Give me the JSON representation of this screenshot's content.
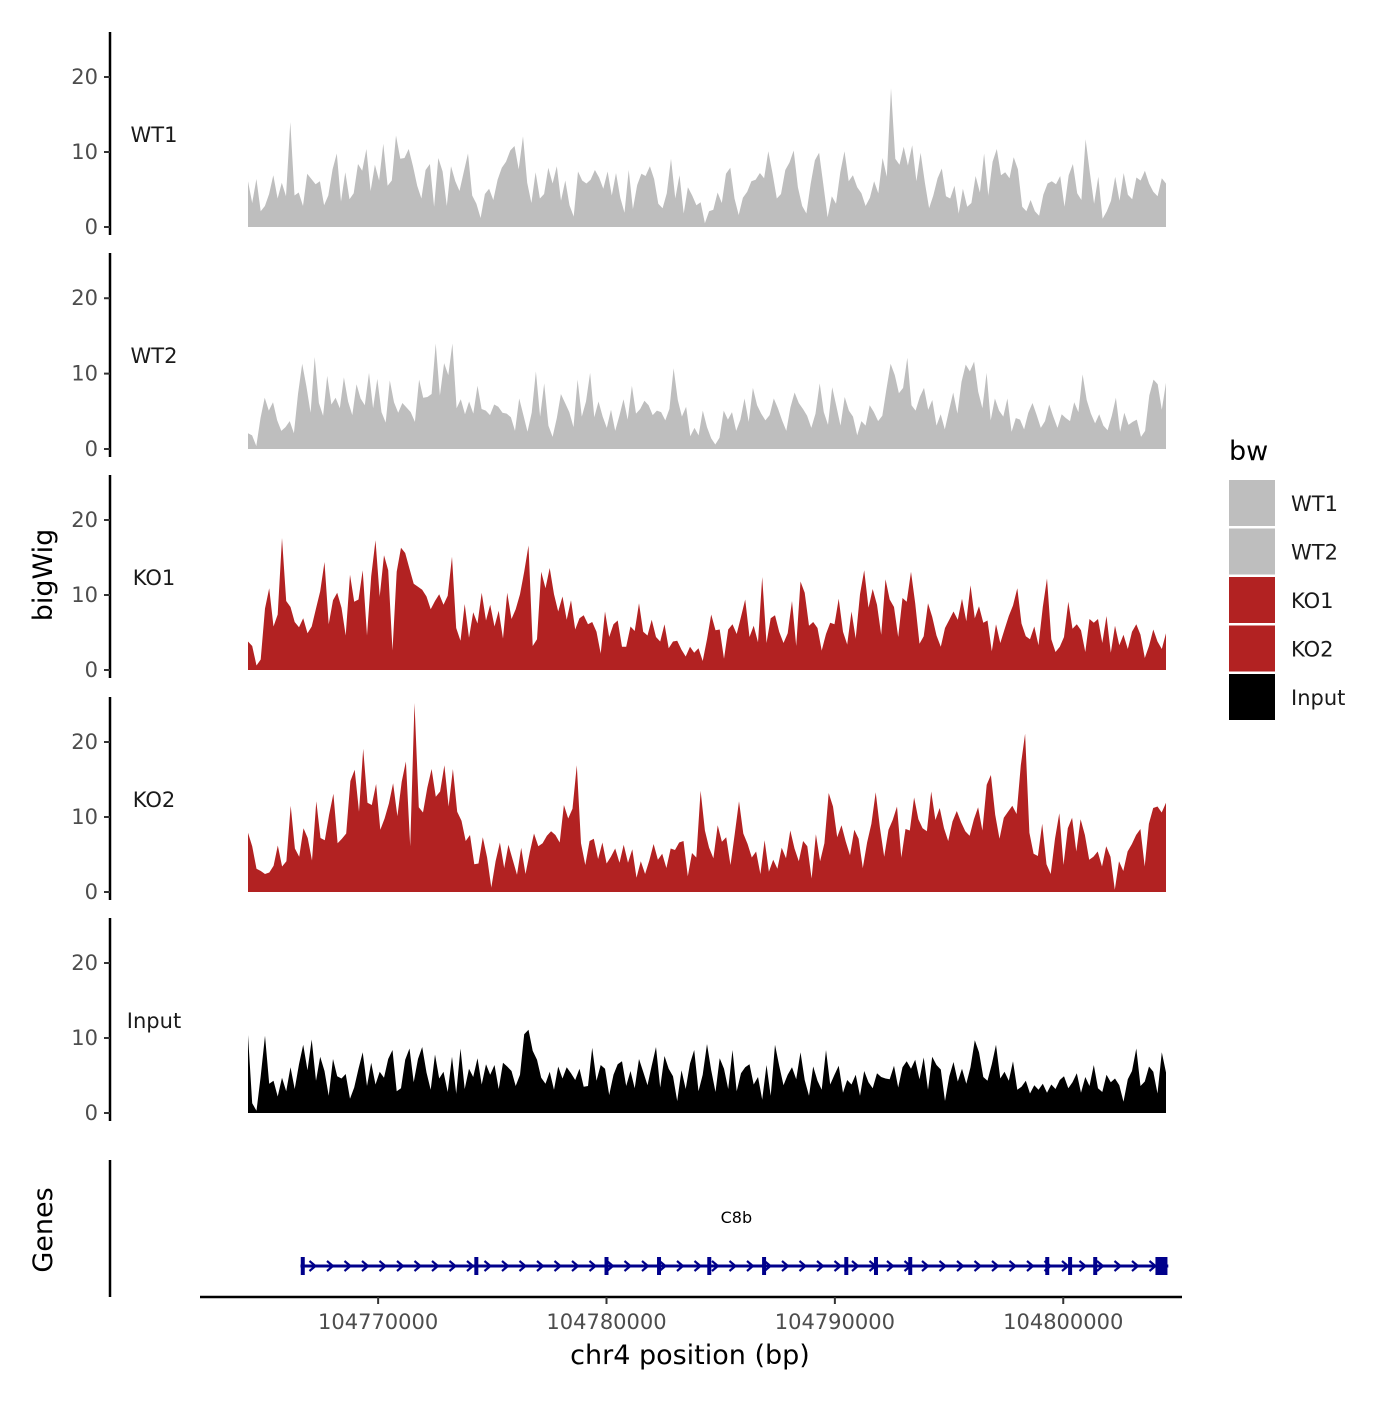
{
  "chart_data": {
    "type": "area",
    "title": "",
    "ylabel": "bigWig",
    "xlabel": "chr4 position (bp)",
    "ylim": [
      0,
      26
    ],
    "y_ticks": [
      0,
      10,
      20
    ],
    "x_ticks": [
      104770000,
      104780000,
      104790000,
      104800000
    ],
    "x_tick_labels": [
      "104770000",
      "104780000",
      "104790000",
      "104800000"
    ],
    "xlim": [
      104762200,
      104805200
    ],
    "data_range": [
      104764300,
      104804500
    ],
    "genes_track_label": "Genes",
    "legend": {
      "title": "bw",
      "position": "right",
      "entries": [
        {
          "label": "WT1",
          "color": "#bebebe"
        },
        {
          "label": "WT2",
          "color": "#bebebe"
        },
        {
          "label": "KO1",
          "color": "#b22222"
        },
        {
          "label": "KO2",
          "color": "#b22222"
        },
        {
          "label": "Input",
          "color": "#000000"
        }
      ]
    },
    "series": [
      {
        "name": "WT1",
        "color": "#bebebe",
        "values": [
          6.1,
          3.2,
          6.4,
          2.1,
          2.8,
          4.4,
          6.9,
          3.8,
          5.9,
          4.1,
          14,
          4.2,
          4.6,
          2.8,
          7.1,
          6.4,
          5.7,
          6.1,
          2.9,
          4.2,
          7.7,
          9.8,
          3.4,
          7.3,
          3.7,
          4.5,
          8.4,
          7.5,
          10.4,
          4.8,
          8.3,
          6.2,
          11.1,
          5.5,
          6.2,
          12.2,
          9.1,
          9.2,
          10.4,
          8.1,
          5.5,
          3.8,
          7.6,
          8.4,
          2.7,
          9.2,
          7.4,
          2.8,
          8.1,
          6.1,
          4.8,
          7.3,
          9.8,
          4.2,
          3.1,
          1.2,
          4.4,
          5.1,
          3.6,
          6.3,
          7.9,
          8.7,
          10.2,
          10.8,
          7.7,
          12.1,
          5.9,
          3.2,
          7.3,
          3.8,
          4.4,
          7.9,
          5.8,
          8.1,
          3.5,
          6.2,
          2.9,
          1.4,
          7.4,
          6.2,
          5.8,
          6.3,
          7.6,
          6.6,
          5.1,
          7.4,
          4.2,
          7.2,
          3.9,
          1.9,
          7.6,
          2.4,
          5.6,
          7.1,
          6.8,
          8.1,
          6.4,
          3.1,
          2.5,
          4.5,
          9.1,
          3.8,
          6.9,
          1.8,
          5.3,
          4.2,
          2.9,
          3.3,
          0.5,
          2.1,
          2.3,
          4.6,
          3.2,
          7.1,
          7.9,
          3.8,
          1.6,
          3.9,
          4.7,
          6.1,
          6.3,
          7.2,
          6.5,
          10.1,
          7.1,
          3.8,
          4.4,
          7.6,
          8.6,
          10.2,
          5.3,
          2.8,
          1.8,
          5.7,
          8.9,
          9.9,
          5.7,
          1.3,
          4.1,
          3.1,
          7.3,
          10.1,
          6.1,
          6.9,
          5.3,
          4.5,
          2.8,
          3.9,
          6.1,
          4.5,
          9.2,
          6.7,
          18.5,
          9.1,
          8.3,
          10.7,
          8.2,
          10.9,
          6.1,
          9.9,
          5.9,
          2.5,
          4.2,
          6.5,
          7.8,
          4.1,
          3.8,
          5.5,
          1.8,
          5.1,
          2.7,
          3.2,
          6.8,
          4.6,
          9.8,
          4.2,
          8.7,
          10.4,
          6.9,
          7.3,
          6.5,
          9.3,
          7.7,
          2.7,
          2.1,
          3.6,
          2.1,
          1.5,
          4.3,
          5.8,
          6.1,
          5.7,
          6.8,
          2.7,
          6.9,
          8.4,
          4.5,
          3.6,
          11.7,
          7.2,
          3.1,
          6.7,
          1.1,
          2.1,
          3.5,
          6.7,
          3.5,
          7.2,
          4.3,
          3.7,
          6.6,
          6.2,
          7.5,
          5.8,
          4.7,
          4.1,
          6.5,
          5.8
        ]
      },
      {
        "name": "WT2",
        "color": "#bebebe",
        "values": [
          2.1,
          1.8,
          0.4,
          4.1,
          6.8,
          5.1,
          6.2,
          3.8,
          2.4,
          2.9,
          3.7,
          2.1,
          7.3,
          11.3,
          8.3,
          4.8,
          12.2,
          6.1,
          4.4,
          9.7,
          5.9,
          6.8,
          5.4,
          9.5,
          6.3,
          4.5,
          8.6,
          6.7,
          5.8,
          10.1,
          5.4,
          9.3,
          4.9,
          3.5,
          9.1,
          6.2,
          4.8,
          6.1,
          5.5,
          4.9,
          3.6,
          9.2,
          6.8,
          6.9,
          7.3,
          14,
          7.1,
          11.4,
          9.8,
          14,
          5.4,
          6.6,
          4.6,
          6.3,
          4.7,
          8.4,
          5.3,
          5.1,
          4.5,
          5.9,
          5.6,
          4.8,
          4.7,
          4.2,
          2.4,
          6.7,
          4.5,
          2.3,
          4.8,
          10.3,
          4.3,
          8.7,
          3.1,
          1.6,
          4.1,
          7.3,
          6.1,
          4.9,
          2.9,
          9.2,
          4.3,
          6.3,
          10.1,
          4.2,
          6.3,
          4.3,
          2.8,
          5.2,
          2.4,
          4.4,
          6.6,
          3.9,
          8.4,
          4.7,
          5.3,
          6.4,
          5.8,
          4.5,
          5.1,
          4.9,
          3.8,
          5.3,
          10.7,
          6.5,
          4.3,
          5.6,
          1.7,
          2.8,
          1.8,
          5.1,
          2.9,
          1.4,
          0.6,
          1.5,
          5.1,
          3.9,
          4.9,
          2.4,
          3.9,
          6.7,
          3.6,
          8.1,
          5.8,
          4.7,
          3.8,
          4.5,
          6.7,
          5.4,
          3.8,
          2.4,
          5.5,
          7.5,
          6.1,
          5.3,
          4.4,
          2.8,
          4.7,
          8.7,
          4.9,
          3.2,
          8.2,
          5.7,
          3.1,
          6.9,
          5.1,
          4.3,
          1.8,
          3.7,
          3.1,
          5.8,
          4.9,
          3.7,
          4.4,
          7.9,
          11.3,
          9.8,
          7.4,
          8.1,
          12.1,
          5.8,
          5.1,
          6.9,
          8.1,
          5.2,
          6.5,
          3.1,
          4.6,
          2.6,
          5.1,
          7.5,
          4.7,
          8.9,
          11.2,
          10.3,
          11.6,
          7.6,
          5.4,
          10.1,
          3.8,
          6.7,
          5.1,
          4.3,
          6.7,
          2.3,
          4.1,
          3.9,
          2.6,
          4.8,
          6.1,
          4.5,
          2.8,
          3.7,
          5.9,
          4.3,
          2.8,
          4.6,
          4.1,
          3.7,
          6.2,
          4.9,
          9.9,
          6.5,
          4.7,
          3.4,
          4.6,
          3.1,
          2.5,
          4.4,
          6.8,
          2.3,
          4.8,
          3.2,
          3.6,
          3.9,
          1.6,
          2.4,
          7.1,
          9.2,
          8.6,
          5.2,
          8.8
        ]
      },
      {
        "name": "KO1",
        "color": "#b22222",
        "values": [
          3.8,
          3.2,
          0.6,
          1.4,
          8.2,
          10.9,
          5.8,
          7.4,
          17.6,
          9.2,
          8.4,
          6.4,
          5.7,
          6.9,
          4.9,
          5.8,
          8.2,
          10.5,
          14.4,
          6.1,
          9.3,
          10.3,
          8.3,
          4.6,
          12.7,
          9.1,
          9.4,
          13.3,
          4.6,
          12.5,
          17.3,
          9.8,
          15.3,
          13.3,
          2.6,
          13.1,
          16.3,
          15.6,
          13.5,
          11.5,
          11.1,
          10.7,
          9.8,
          8.1,
          9.2,
          10.1,
          8.7,
          9.9,
          15.1,
          5.6,
          3.9,
          8.8,
          4.3,
          7.7,
          6.2,
          10.3,
          6.6,
          8.7,
          5.8,
          7.9,
          4.2,
          10.3,
          6.8,
          8.1,
          10.1,
          13.1,
          16.6,
          3.2,
          4.1,
          13.1,
          10.9,
          13.6,
          10.1,
          7.8,
          9.8,
          6.7,
          9.3,
          5.4,
          6.9,
          7.3,
          6.1,
          6.4,
          5.1,
          2.2,
          7.8,
          4.4,
          6.1,
          6.6,
          3.1,
          3.1,
          5.8,
          5.2,
          8.9,
          5.1,
          4.6,
          6.7,
          4.4,
          3.8,
          6.1,
          2.9,
          3.8,
          3.9,
          2.7,
          1.8,
          3.1,
          2.3,
          2.9,
          1.2,
          4.1,
          7.4,
          5.3,
          5.4,
          1.5,
          5.4,
          6.1,
          4.8,
          7.1,
          9.4,
          4.4,
          5.9,
          3.7,
          12.4,
          3.6,
          6.9,
          7.3,
          5.1,
          3.6,
          4.9,
          9.2,
          3.2,
          11.8,
          10.3,
          5.9,
          6.4,
          5.6,
          2.6,
          4.8,
          6.3,
          6.1,
          9.5,
          5.1,
          3.4,
          7.8,
          4.2,
          10.1,
          13.3,
          8.3,
          10.8,
          8.7,
          4.7,
          12.1,
          9.4,
          8.4,
          4.4,
          9.6,
          9.1,
          13.1,
          8.9,
          3.5,
          4.5,
          8.9,
          7.1,
          4.6,
          3.1,
          5.6,
          6.7,
          7.8,
          6.7,
          9.5,
          6.5,
          11.3,
          6.9,
          8.5,
          6.3,
          6.6,
          2.5,
          6.1,
          3.6,
          5.4,
          7.2,
          8.6,
          10.9,
          6.2,
          4.5,
          4.1,
          5.8,
          3.3,
          8.4,
          12.2,
          4.1,
          2.4,
          3.1,
          4.4,
          9.1,
          5.5,
          6.1,
          5.3,
          2.4,
          6.8,
          6.3,
          6.8,
          3.6,
          7.2,
          2.3,
          5.9,
          3.3,
          4.7,
          2.8,
          5.1,
          6.1,
          4.7,
          1.6,
          3.2,
          5.4,
          3.8,
          2.8,
          4.9
        ]
      },
      {
        "name": "KO2",
        "color": "#b22222",
        "values": [
          7.9,
          6.1,
          3.1,
          2.8,
          2.4,
          2.6,
          3.5,
          6.2,
          3.4,
          4.1,
          11.5,
          5.8,
          4.7,
          8.5,
          7.2,
          4.2,
          12.1,
          7.2,
          6.9,
          10.3,
          13.1,
          6.5,
          7.1,
          7.8,
          14.8,
          16.3,
          10.7,
          19.1,
          11.9,
          11.6,
          14.4,
          8.3,
          9.8,
          11.8,
          14.5,
          10.1,
          14.7,
          17.4,
          6.1,
          25.2,
          11.3,
          10.6,
          13.9,
          16.4,
          12.7,
          13.4,
          16.9,
          11.4,
          16.4,
          10.7,
          9.5,
          6.8,
          7.6,
          3.7,
          3.8,
          7.3,
          4.6,
          0.6,
          4.1,
          6.6,
          3.2,
          6.3,
          4.3,
          2.3,
          5.9,
          2.4,
          5.3,
          7.8,
          6.1,
          6.5,
          7.5,
          8.1,
          7.6,
          6.6,
          11.6,
          9.8,
          11.1,
          16.9,
          6.5,
          3.6,
          6.8,
          7.1,
          4.4,
          6.6,
          3.8,
          4.7,
          5.8,
          3.9,
          6.3,
          3.9,
          5.7,
          1.9,
          4.1,
          2.4,
          4.2,
          6.4,
          4.3,
          5.1,
          3.2,
          5.8,
          5.6,
          6.6,
          6.8,
          2.1,
          5.2,
          4.6,
          13.5,
          8.2,
          5.9,
          4.5,
          8.9,
          6.7,
          7.3,
          3.6,
          7.7,
          12.1,
          7.8,
          6.4,
          4.6,
          5.4,
          2.4,
          6.9,
          2.7,
          4.3,
          3.1,
          5.9,
          4.5,
          8.2,
          5.8,
          4.1,
          6.8,
          6.1,
          1.8,
          7.7,
          4.1,
          6.5,
          13.2,
          11.4,
          7.3,
          8.9,
          6.7,
          4.9,
          8.3,
          7.1,
          3.2,
          6.6,
          9.1,
          13.3,
          8.6,
          4.7,
          8.3,
          9.6,
          11.4,
          4.6,
          8.4,
          8.2,
          12.6,
          9.7,
          8.5,
          8.1,
          13.4,
          9.6,
          11.2,
          8.5,
          6.8,
          9.4,
          10.8,
          9.3,
          8.1,
          7.5,
          9.7,
          11.3,
          8.2,
          14.3,
          15.6,
          10.3,
          7.1,
          9.9,
          10.7,
          11.5,
          10.4,
          16.9,
          21.1,
          7.9,
          5.1,
          4.8,
          9.1,
          3.7,
          2.4,
          7.1,
          10.5,
          3.6,
          8.5,
          9.9,
          5.4,
          9.7,
          7.6,
          4.3,
          4.7,
          5.4,
          3.4,
          6.1,
          4.7,
          0.3,
          4.1,
          2.8,
          5.4,
          6.4,
          7.6,
          8.4,
          3.4,
          9.1,
          11.2,
          11.4,
          10.6,
          11.9
        ]
      },
      {
        "name": "Input",
        "color": "#000000",
        "values": [
          10.4,
          1.3,
          0.3,
          4.9,
          10.3,
          3.9,
          4.3,
          2.2,
          4.7,
          2.9,
          6.1,
          3.2,
          6.5,
          9.1,
          5.7,
          9.8,
          4.3,
          7.5,
          5.6,
          2.3,
          7.2,
          4.9,
          4.6,
          5.2,
          1.9,
          3.4,
          5.9,
          8.1,
          3.6,
          6.7,
          3.8,
          5.5,
          4.7,
          7.2,
          8.4,
          2.9,
          3.3,
          7.1,
          8.6,
          4.1,
          7.2,
          8.8,
          5.4,
          3.1,
          7.8,
          4.6,
          5.5,
          2.8,
          7.5,
          2.6,
          8.6,
          3.2,
          5.9,
          4.8,
          7.3,
          3.8,
          6.5,
          5.1,
          6.4,
          3.2,
          6.7,
          6.2,
          5.6,
          3.6,
          5.1,
          10.5,
          11.1,
          8.3,
          7.1,
          4.7,
          3.9,
          5.5,
          3.1,
          6.2,
          4.6,
          6.1,
          5.3,
          4.4,
          5.9,
          3.5,
          3.6,
          8.7,
          4.3,
          6.4,
          5.9,
          2.4,
          5.1,
          6.5,
          6.9,
          3.6,
          5.6,
          3.3,
          7.2,
          5.5,
          3.7,
          6.3,
          8.8,
          3.4,
          7.6,
          5.9,
          4.9,
          1.6,
          5.7,
          3.2,
          6.6,
          8.4,
          2.9,
          5.1,
          9.2,
          5.7,
          2.8,
          7.3,
          5.9,
          3.2,
          8.4,
          2.9,
          5.3,
          6.1,
          6.5,
          3.8,
          4.8,
          1.8,
          6.4,
          2.3,
          9.1,
          6.3,
          3.7,
          5.1,
          6.1,
          4.5,
          8.1,
          4.4,
          2.3,
          6.2,
          4.3,
          3.1,
          8.4,
          3.8,
          5.1,
          6.3,
          2.7,
          4.4,
          3.8,
          5.1,
          2.3,
          5.6,
          4.1,
          3.3,
          5.3,
          4.8,
          4.6,
          4.5,
          6.3,
          3.4,
          6.1,
          6.9,
          5.9,
          7.1,
          4.5,
          7.4,
          3.1,
          7.5,
          6.4,
          5.8,
          1.6,
          4.9,
          6.8,
          4.2,
          5.9,
          3.9,
          6.1,
          9.7,
          8.1,
          4.8,
          4.3,
          6.5,
          9.1,
          4.6,
          5.5,
          4.3,
          6.9,
          3.1,
          3.5,
          4.3,
          2.6,
          3.7,
          3.1,
          3.9,
          2.7,
          3.8,
          3.2,
          4.4,
          4.9,
          3.3,
          4.1,
          5.3,
          2.7,
          4.8,
          3.6,
          6.4,
          3.3,
          2.8,
          5.1,
          4.1,
          4.6,
          3.7,
          1.5,
          4.5,
          5.6,
          8.6,
          3.6,
          4.2,
          6.2,
          5.5,
          2.6,
          8.1,
          5.4
        ]
      }
    ],
    "genes": [
      {
        "name": "C8b",
        "strand": "+",
        "start": 104766600,
        "end": 104804600,
        "exons": [
          104766700,
          104774300,
          104780000,
          104782300,
          104784500,
          104786900,
          104790500,
          104791800,
          104793300,
          104799300,
          104800300,
          104801400,
          104804300
        ]
      }
    ]
  }
}
